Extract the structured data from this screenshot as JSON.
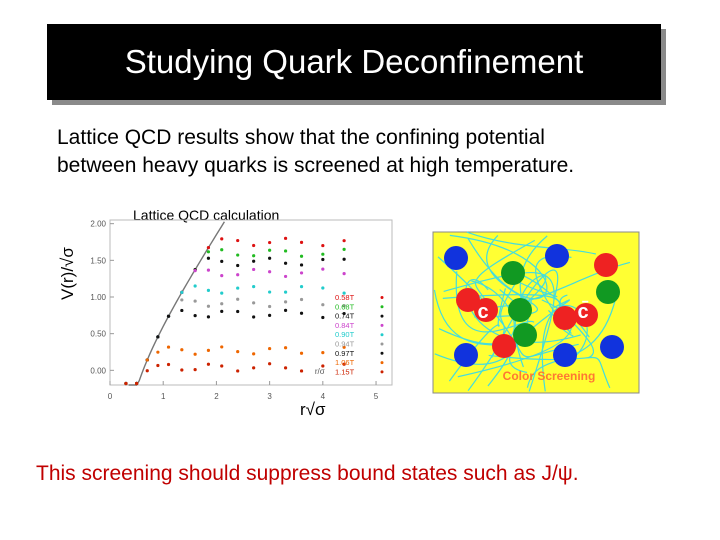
{
  "title": "Studying Quark Deconfinement",
  "intro_line1": "Lattice QCD results show that the confining potential",
  "intro_line2": "between heavy quarks is screened at high temperature.",
  "plot_caption": "Lattice QCD calculation",
  "y_axis_title": "V(r)/√σ",
  "x_axis_title": "r√σ",
  "inner_x_label": "r/σ",
  "diagram": {
    "quark_label": "c",
    "antiquark_label": "c̄",
    "caption": "Color Screening",
    "colors": {
      "background": "#ffff33",
      "gluon": "#44dddd",
      "red": "#ee2222",
      "green": "#119922",
      "blue": "#1133dd"
    }
  },
  "bottom_text": "This screening should suppress bound states such as J/ψ.",
  "chart_data": {
    "type": "scatter",
    "x_ticks": [
      "0",
      "1",
      "2",
      "3",
      "4",
      "5"
    ],
    "y_ticks": [
      "0.00",
      "0.50",
      "1.00",
      "1.50",
      "2.00"
    ],
    "xlim": [
      0,
      5.3
    ],
    "ylim": [
      -0.2,
      2.05
    ],
    "legend_position": "right",
    "series": [
      {
        "name": "0.58T",
        "color": "#dd1111",
        "plateau": 1.75
      },
      {
        "name": "0.68T",
        "color": "#22bb22",
        "plateau": 1.6
      },
      {
        "name": "0.74T",
        "color": "#111111",
        "plateau": 1.48
      },
      {
        "name": "0.84T",
        "color": "#cc44cc",
        "plateau": 1.33
      },
      {
        "name": "0.90T",
        "color": "#22cccc",
        "plateau": 1.1
      },
      {
        "name": "0.94T",
        "color": "#999999",
        "plateau": 0.92
      },
      {
        "name": "0.97T",
        "color": "#111111",
        "plateau": 0.77
      },
      {
        "name": "1.06T",
        "color": "#ee6600",
        "plateau": 0.27
      },
      {
        "name": "1.15T",
        "color": "#cc2200",
        "plateau": 0.04
      }
    ],
    "x_values": [
      0.3,
      0.5,
      0.7,
      0.9,
      1.1,
      1.35,
      1.6,
      1.85,
      2.1,
      2.4,
      2.7,
      3.0,
      3.3,
      3.6,
      4.0,
      4.4
    ]
  }
}
